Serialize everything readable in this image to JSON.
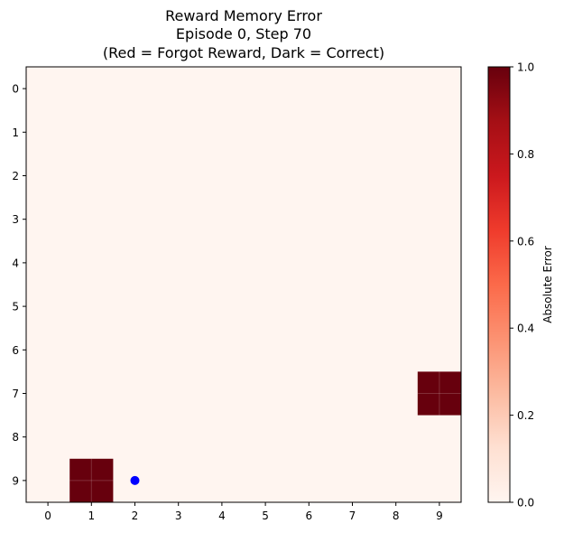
{
  "chart_data": {
    "type": "heatmap",
    "title": [
      "Reward Memory Error",
      "Episode 0, Step 70",
      "(Red = Forgot Reward, Dark = Correct)"
    ],
    "x_ticks": [
      "0",
      "1",
      "2",
      "3",
      "4",
      "5",
      "6",
      "7",
      "8",
      "9"
    ],
    "y_ticks": [
      "0",
      "1",
      "2",
      "3",
      "4",
      "5",
      "6",
      "7",
      "8",
      "9"
    ],
    "grid_size": 10,
    "background_value": 0.0,
    "cells": [
      {
        "row": 7,
        "col": 9,
        "value": 1.0
      },
      {
        "row": 9,
        "col": 1,
        "value": 1.0
      }
    ],
    "agent": {
      "row": 9,
      "col": 2,
      "color": "#0000ff"
    },
    "colorbar": {
      "label": "Absolute Error",
      "range": [
        0,
        1
      ],
      "ticks": [
        "0.0",
        "0.2",
        "0.4",
        "0.6",
        "0.8",
        "1.0"
      ],
      "colormap": "Reds"
    }
  }
}
